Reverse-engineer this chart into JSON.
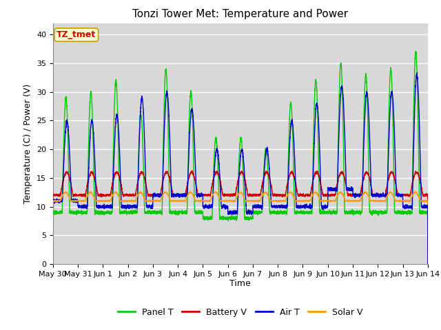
{
  "title": "Tonzi Tower Met: Temperature and Power",
  "xlabel": "Time",
  "ylabel": "Temperature (C) / Power (V)",
  "ylim": [
    0,
    42
  ],
  "yticks": [
    0,
    5,
    10,
    15,
    20,
    25,
    30,
    35,
    40
  ],
  "xtick_labels": [
    "May 30",
    "May 31",
    "Jun 1",
    "Jun 2",
    "Jun 3",
    "Jun 4",
    "Jun 5",
    "Jun 6",
    "Jun 7",
    "Jun 8",
    "Jun 9",
    "Jun 10",
    "Jun 11",
    "Jun 12",
    "Jun 13",
    "Jun 14"
  ],
  "annotation_text": "TZ_tmet",
  "annotation_box_facecolor": "#ffffcc",
  "annotation_box_edgecolor": "#cc9900",
  "annotation_text_color": "#cc0000",
  "colors": {
    "panel_t": "#00cc00",
    "battery_v": "#cc0000",
    "air_t": "#0000cc",
    "solar_v": "#ff9900"
  },
  "legend_labels": [
    "Panel T",
    "Battery V",
    "Air T",
    "Solar V"
  ],
  "fig_bg_color": "#ffffff",
  "plot_bg_color": "#d8d8d8",
  "grid_color": "#ffffff",
  "title_fontsize": 11,
  "axis_fontsize": 9,
  "tick_fontsize": 8
}
